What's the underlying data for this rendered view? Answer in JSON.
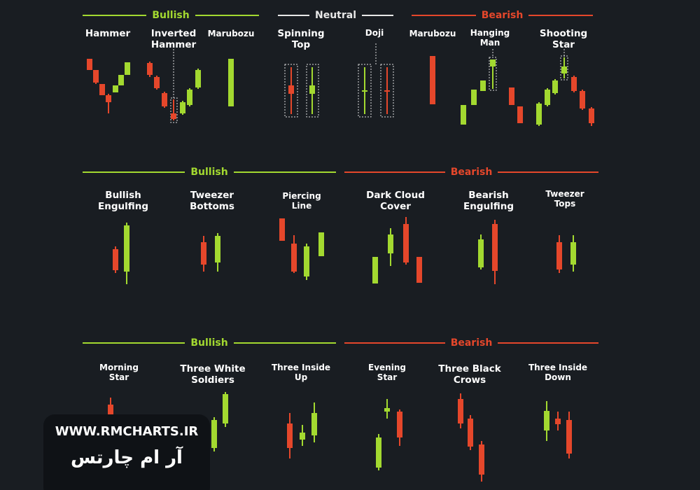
{
  "rows": [
    {
      "groups": [
        {
          "label": "Bullish",
          "patterns": [
            "Hammer",
            "Inverted\nHammer",
            "Marubozu"
          ]
        },
        {
          "label": "Neutral",
          "patterns": [
            "Spinning\nTop",
            "Doji"
          ]
        },
        {
          "label": "Bearish",
          "patterns": [
            "Marubozu",
            "Hanging\nMan",
            "Shooting\nStar"
          ]
        }
      ]
    },
    {
      "groups": [
        {
          "label": "Bullish",
          "patterns": [
            "Bullish\nEngulfing",
            "Tweezer\nBottoms",
            "Piercing\nLine"
          ]
        },
        {
          "label": "Bearish",
          "patterns": [
            "Dark Cloud\nCover",
            "Bearish\nEngulfing",
            "Tweezer\nTops"
          ]
        }
      ]
    },
    {
      "groups": [
        {
          "label": "Bullish",
          "patterns": [
            "Morning\nStar",
            "Three White\nSoldiers",
            "Three Inside\nUp"
          ]
        },
        {
          "label": "Bearish",
          "patterns": [
            "Evening\nStar",
            "Three Black\nCrows",
            "Three Inside\nDown"
          ]
        }
      ]
    }
  ],
  "watermark": {
    "url": "WWW.RMCHARTS.IR",
    "name": "آر ام چارتس"
  }
}
